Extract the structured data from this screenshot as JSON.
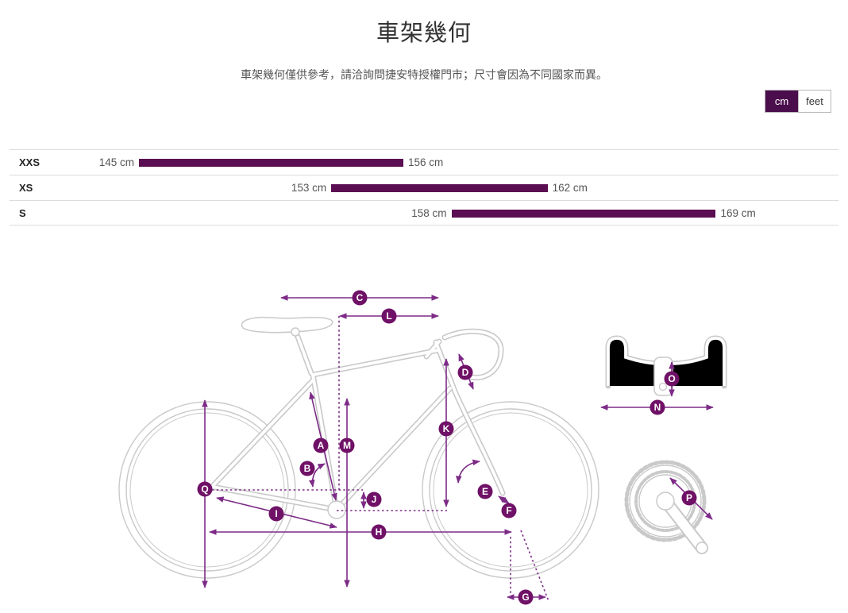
{
  "header": {
    "title": "車架幾何",
    "subtitle": "車架幾何僅供參考，請洽詢問捷安特授權門市；尺寸會因為不同國家而異。"
  },
  "unit_toggle": {
    "options": [
      {
        "label": "cm",
        "selected": true
      },
      {
        "label": "feet",
        "selected": false
      }
    ]
  },
  "chart_data": {
    "type": "bar",
    "subtype": "horizontal-range-bars",
    "categories": [
      "XXS",
      "XS",
      "S"
    ],
    "unit": "cm",
    "series": [
      {
        "name": "rider-height-range",
        "ranges": [
          {
            "min": 145,
            "max": 156,
            "min_label": "145 cm",
            "max_label": "156 cm"
          },
          {
            "min": 153,
            "max": 162,
            "min_label": "153 cm",
            "max_label": "162 cm"
          },
          {
            "min": 158,
            "max": 169,
            "min_label": "158 cm",
            "max_label": "169 cm"
          }
        ]
      }
    ],
    "xlim": [
      139,
      173
    ],
    "grid": false,
    "legend": false
  },
  "diagram": {
    "labels": [
      {
        "letter": "A"
      },
      {
        "letter": "B"
      },
      {
        "letter": "C"
      },
      {
        "letter": "D"
      },
      {
        "letter": "E"
      },
      {
        "letter": "F"
      },
      {
        "letter": "G"
      },
      {
        "letter": "H"
      },
      {
        "letter": "I"
      },
      {
        "letter": "J"
      },
      {
        "letter": "K"
      },
      {
        "letter": "L"
      },
      {
        "letter": "M"
      },
      {
        "letter": "N"
      },
      {
        "letter": "O"
      },
      {
        "letter": "P"
      },
      {
        "letter": "Q"
      }
    ]
  },
  "colors": {
    "accent_dark": "#4a0e4d",
    "bar": "#5b0e52",
    "purple": "#7d2b87",
    "label_bg": "#6f1166",
    "outline": "#c9c9c9"
  }
}
